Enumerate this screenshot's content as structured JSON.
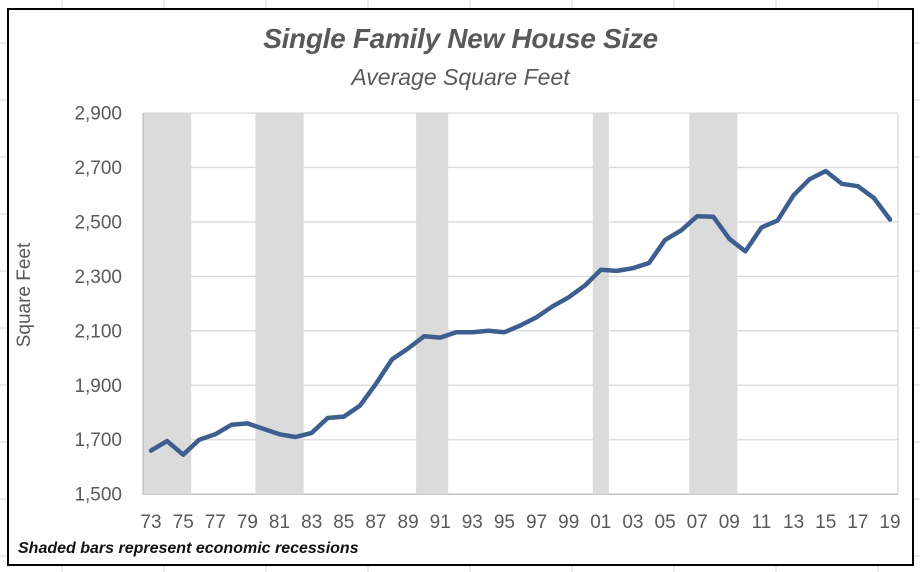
{
  "chart_data": {
    "type": "line",
    "title": "Single Family New House Size",
    "subtitle": "Average Square Feet",
    "ylabel": "Square Feet",
    "footnote": "Shaded bars represent economic recessions",
    "x": [
      1973,
      1974,
      1975,
      1976,
      1977,
      1978,
      1979,
      1980,
      1981,
      1982,
      1983,
      1984,
      1985,
      1986,
      1987,
      1988,
      1989,
      1990,
      1991,
      1992,
      1993,
      1994,
      1995,
      1996,
      1997,
      1998,
      1999,
      2000,
      2001,
      2002,
      2003,
      2004,
      2005,
      2006,
      2007,
      2008,
      2009,
      2010,
      2011,
      2012,
      2013,
      2014,
      2015,
      2016,
      2017,
      2018,
      2019
    ],
    "values": [
      1660,
      1695,
      1645,
      1700,
      1720,
      1755,
      1760,
      1740,
      1720,
      1710,
      1725,
      1780,
      1785,
      1825,
      1905,
      1995,
      2035,
      2080,
      2075,
      2095,
      2095,
      2100,
      2095,
      2120,
      2150,
      2190,
      2223,
      2266,
      2324,
      2320,
      2330,
      2349,
      2434,
      2469,
      2521,
      2519,
      2438,
      2392,
      2480,
      2505,
      2598,
      2657,
      2687,
      2640,
      2631,
      2588,
      2509
    ],
    "ylim": [
      1500,
      2900
    ],
    "y_ticks": [
      1500,
      1700,
      1900,
      2100,
      2300,
      2500,
      2700,
      2900
    ],
    "y_tick_labels": [
      "1,500",
      "1,700",
      "1,900",
      "2,100",
      "2,300",
      "2,500",
      "2,700",
      "2,900"
    ],
    "x_tick_years": [
      1973,
      1975,
      1977,
      1979,
      1981,
      1983,
      1985,
      1987,
      1989,
      1991,
      1993,
      1995,
      1997,
      1999,
      2001,
      2003,
      2005,
      2007,
      2009,
      2011,
      2013,
      2015,
      2017,
      2019
    ],
    "x_tick_labels": [
      "73",
      "75",
      "77",
      "79",
      "81",
      "83",
      "85",
      "87",
      "89",
      "91",
      "93",
      "95",
      "97",
      "99",
      "01",
      "03",
      "05",
      "07",
      "09",
      "11",
      "13",
      "15",
      "17",
      "19"
    ],
    "recessions": [
      [
        1973,
        1975
      ],
      [
        1980,
        1982
      ],
      [
        1990,
        1991
      ],
      [
        2001,
        2001
      ],
      [
        2007,
        2009
      ]
    ],
    "grid": "horizontal",
    "legend": "none",
    "colors": {
      "line": "#3E5E90",
      "band": "#DBDBDB",
      "grid": "#D9D9D9",
      "axis": "#BFBFBF",
      "text": "#595959",
      "frame": "#000000"
    }
  }
}
